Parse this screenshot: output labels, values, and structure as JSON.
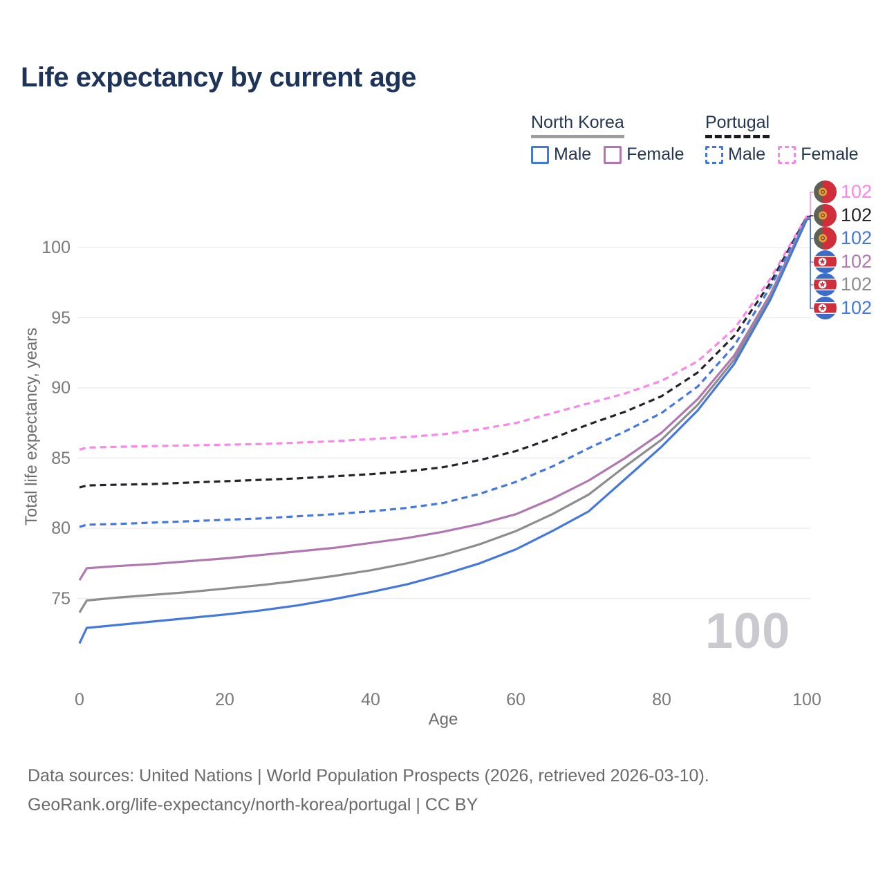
{
  "title": "Life expectancy by current age",
  "legend": {
    "groups": [
      {
        "country": "North Korea",
        "line_style": "solid",
        "items": [
          {
            "label": "Male",
            "series": "nk_male"
          },
          {
            "label": "Female",
            "series": "nk_female"
          }
        ]
      },
      {
        "country": "Portugal",
        "line_style": "dashed",
        "items": [
          {
            "label": "Male",
            "series": "pt_male"
          },
          {
            "label": "Female",
            "series": "pt_female"
          }
        ]
      }
    ]
  },
  "colors": {
    "title_text": "#1d3458",
    "legend_text": "#243750",
    "nk_underline": "#9e9e9e",
    "pt_underline": "#1b1b20",
    "male_blue": "#4478de",
    "female_purple": "#b077b0",
    "female_pink": "#fa87e7",
    "total_black": "#232329",
    "total_gray": "#8d8d8d",
    "grid": "#ededf0",
    "tick_text": "#7a7a7a",
    "axis_title_text": "#6d6d6d",
    "watermark": "#c9c9cf",
    "footer_text": "#6a6a6a",
    "flag_red": "#cf2e3a",
    "flag_blue": "#3a6cc8",
    "flag_green_dark": "#5d6156",
    "flag_emblem_gold": "#e3a23d"
  },
  "chart_data": {
    "type": "line",
    "title": "Life expectancy by current age",
    "xlabel": "Age",
    "ylabel": "Total life expectancy, years",
    "xlim": [
      0,
      100
    ],
    "ylim": [
      71,
      103
    ],
    "xticks": [
      0,
      20,
      40,
      60,
      80,
      100
    ],
    "yticks": [
      75,
      80,
      85,
      90,
      95,
      100
    ],
    "grid": "horizontal",
    "legend_position": "top-right",
    "watermark": "100",
    "ages": [
      0,
      1,
      5,
      10,
      15,
      20,
      25,
      30,
      35,
      40,
      45,
      50,
      55,
      60,
      65,
      70,
      75,
      80,
      85,
      90,
      95,
      100
    ],
    "series": [
      {
        "id": "pt_female",
        "country": "Portugal",
        "sex": "Female",
        "dash": true,
        "color_key": "female_pink",
        "end_label": "102",
        "values": [
          85.6,
          85.75,
          85.8,
          85.85,
          85.9,
          85.95,
          86.0,
          86.1,
          86.2,
          86.35,
          86.5,
          86.7,
          87.05,
          87.5,
          88.2,
          88.9,
          89.6,
          90.5,
          91.9,
          94.2,
          97.8,
          102.25
        ]
      },
      {
        "id": "pt_total",
        "country": "Portugal",
        "sex": "All",
        "dash": true,
        "color_key": "total_black",
        "end_label": "102",
        "values": [
          82.9,
          83.05,
          83.1,
          83.15,
          83.25,
          83.35,
          83.45,
          83.55,
          83.7,
          83.85,
          84.05,
          84.35,
          84.85,
          85.5,
          86.4,
          87.4,
          88.3,
          89.4,
          91.1,
          93.7,
          97.5,
          102.2
        ]
      },
      {
        "id": "pt_male",
        "country": "Portugal",
        "sex": "Male",
        "dash": true,
        "color_key": "male_blue",
        "end_label": "102",
        "values": [
          80.1,
          80.25,
          80.3,
          80.4,
          80.5,
          80.6,
          80.7,
          80.85,
          81.0,
          81.2,
          81.45,
          81.8,
          82.45,
          83.3,
          84.4,
          85.7,
          86.9,
          88.2,
          90.1,
          93.0,
          97.2,
          102.15
        ]
      },
      {
        "id": "nk_female",
        "country": "North Korea",
        "sex": "Female",
        "dash": false,
        "color_key": "female_purple",
        "end_label": "102",
        "values": [
          76.3,
          77.15,
          77.3,
          77.45,
          77.65,
          77.85,
          78.1,
          78.35,
          78.6,
          78.95,
          79.3,
          79.75,
          80.3,
          81.0,
          82.1,
          83.4,
          85.0,
          86.8,
          89.2,
          92.3,
          96.7,
          102.1
        ]
      },
      {
        "id": "nk_total",
        "country": "North Korea",
        "sex": "All",
        "dash": false,
        "color_key": "total_gray",
        "end_label": "102",
        "values": [
          74.0,
          74.85,
          75.05,
          75.25,
          75.45,
          75.7,
          75.95,
          76.25,
          76.6,
          77.0,
          77.5,
          78.1,
          78.85,
          79.8,
          81.0,
          82.4,
          84.4,
          86.3,
          88.8,
          92.0,
          96.5,
          102.05
        ]
      },
      {
        "id": "nk_male",
        "country": "North Korea",
        "sex": "Male",
        "dash": false,
        "color_key": "male_blue",
        "end_label": "102",
        "values": [
          71.8,
          72.9,
          73.1,
          73.35,
          73.6,
          73.85,
          74.15,
          74.5,
          74.95,
          75.45,
          76.0,
          76.7,
          77.5,
          78.5,
          79.8,
          81.2,
          83.5,
          85.8,
          88.4,
          91.7,
          96.3,
          102.0
        ]
      }
    ]
  },
  "footer": {
    "line1": "Data sources: United Nations | World Population Prospects (2026, retrieved 2026-03-10).",
    "line2": "GeoRank.org/life-expectancy/north-korea/portugal | CC BY"
  }
}
